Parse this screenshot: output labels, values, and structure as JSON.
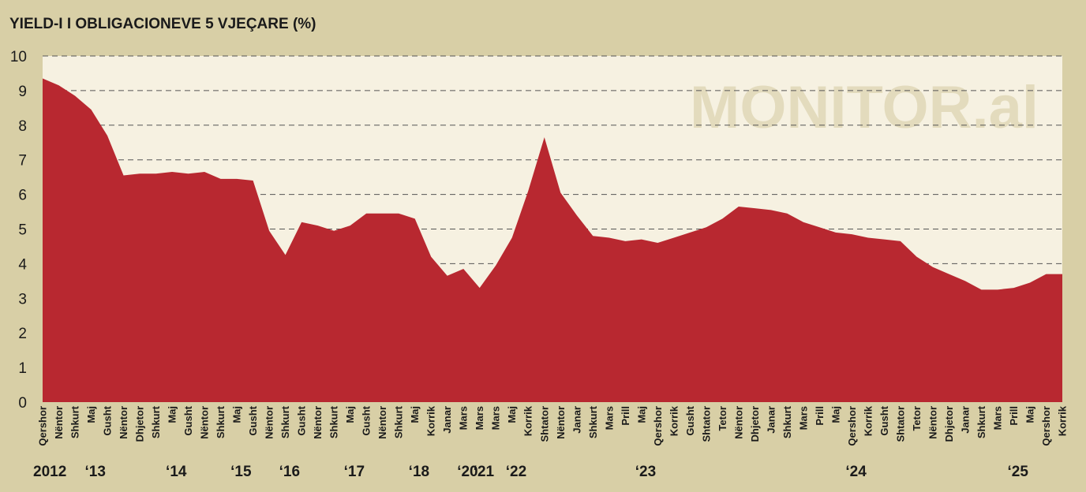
{
  "watermark": "MONITOR.al",
  "colors": {
    "background": "#d8cfa6",
    "plot_bg": "#f6f1e1",
    "area": "#b82830",
    "grid": "#555555"
  },
  "chart_data": {
    "type": "area",
    "title": "YIELD-I I OBLIGACIONEVE 5 VJEÇARE (%)",
    "xlabel": "",
    "ylabel": "",
    "ylim": [
      0,
      10
    ],
    "yticks": [
      "0",
      "1",
      "2",
      "3",
      "4",
      "5",
      "6",
      "7",
      "8",
      "9",
      "10"
    ],
    "grid": "horizontal-dashed",
    "categories": [
      "Qershor",
      "Nëntor",
      "Shkurt",
      "Maj",
      "Gusht",
      "Nëntor",
      "Dhjetor",
      "Shkurt",
      "Maj",
      "Gusht",
      "Nëntor",
      "Shkurt",
      "Maj",
      "Gusht",
      "Nëntor",
      "Shkurt",
      "Gusht",
      "Nëntor",
      "Shkurt",
      "Maj",
      "Gusht",
      "Nëntor",
      "Shkurt",
      "Maj",
      "Korrik",
      "Janar",
      "Mars",
      "Mars",
      "Mars",
      "Maj",
      "Korrik",
      "Shtator",
      "Nëntor",
      "Janar",
      "Shkurt",
      "Mars",
      "Prill",
      "Maj",
      "Qershor",
      "Korrik",
      "Gusht",
      "Shtator",
      "Tetor",
      "Nëntor",
      "Dhjetor",
      "Janar",
      "Shkurt",
      "Mars",
      "Prill",
      "Maj",
      "Qershor",
      "Korrik",
      "Gusht",
      "Shtator",
      "Tetor",
      "Nëntor",
      "Dhjetor",
      "Janar",
      "Shkurt",
      "Mars",
      "Prill",
      "Maj",
      "Qershor",
      "Korrik"
    ],
    "values": [
      9.35,
      9.15,
      8.85,
      8.45,
      7.7,
      6.55,
      6.6,
      6.6,
      6.65,
      6.6,
      6.65,
      6.45,
      6.45,
      6.4,
      4.95,
      4.25,
      5.2,
      5.1,
      4.95,
      5.1,
      5.45,
      5.45,
      5.45,
      5.3,
      4.2,
      3.65,
      3.85,
      3.3,
      3.95,
      4.75,
      6.1,
      7.65,
      6.05,
      5.4,
      4.8,
      4.75,
      4.65,
      4.7,
      4.6,
      4.75,
      4.9,
      5.05,
      5.3,
      5.65,
      5.6,
      5.55,
      5.45,
      5.2,
      5.05,
      4.9,
      4.85,
      4.75,
      4.7,
      4.65,
      4.2,
      3.9,
      3.7,
      3.5,
      3.25,
      3.25,
      3.3,
      3.45,
      3.7,
      3.7
    ],
    "year_labels": [
      {
        "label": "2012",
        "index": 0
      },
      {
        "label": "‘13",
        "index": 3
      },
      {
        "label": "‘14",
        "index": 8
      },
      {
        "label": "‘15",
        "index": 12
      },
      {
        "label": "‘16",
        "index": 15
      },
      {
        "label": "‘17",
        "index": 19
      },
      {
        "label": "‘18",
        "index": 23
      },
      {
        "label": "‘20",
        "index": 26
      },
      {
        "label": "‘21",
        "index": 27
      },
      {
        "label": "‘22",
        "index": 29
      },
      {
        "label": "‘23",
        "index": 37
      },
      {
        "label": "‘24",
        "index": 50
      },
      {
        "label": "‘25",
        "index": 60
      }
    ]
  }
}
